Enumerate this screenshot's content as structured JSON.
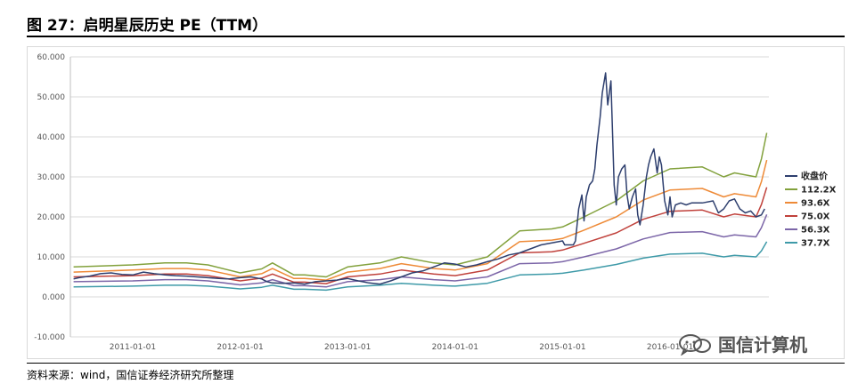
{
  "header": {
    "title": "图 27：启明星辰历史 PE（TTM）"
  },
  "footer": {
    "source": "资料来源：wind，国信证券经济研究所整理"
  },
  "watermark": {
    "text": "国信计算机",
    "icon": "wechat-icon"
  },
  "chart_data": {
    "type": "line",
    "title": "",
    "xlabel": "",
    "ylabel": "",
    "ylim": [
      -10,
      60
    ],
    "yticks": [
      -10,
      0,
      10,
      20,
      30,
      40,
      50,
      60
    ],
    "ytick_labels": [
      "-10.000",
      "0.000",
      "10.000",
      "20.000",
      "30.000",
      "40.000",
      "50.000",
      "60.000"
    ],
    "xlim": [
      2010.42,
      2016.92
    ],
    "xticks": [
      2011,
      2012,
      2013,
      2014,
      2015,
      2016
    ],
    "xtick_labels": [
      "2011-01-01",
      "2012-01-01",
      "2013-01-01",
      "2014-01-01",
      "2015-01-01",
      "2016-01-01"
    ],
    "grid": "horizontal",
    "legend": "right",
    "series": [
      {
        "name": "收盘价",
        "color": "#2e3f6e",
        "width": 1.5,
        "x": [
          2010.45,
          2010.5,
          2010.6,
          2010.7,
          2010.8,
          2010.9,
          2011.0,
          2011.1,
          2011.2,
          2011.3,
          2011.4,
          2011.5,
          2011.6,
          2011.7,
          2011.8,
          2011.9,
          2012.0,
          2012.1,
          2012.2,
          2012.25,
          2012.3,
          2012.4,
          2012.5,
          2012.6,
          2012.7,
          2012.8,
          2012.9,
          2013.0,
          2013.1,
          2013.2,
          2013.3,
          2013.4,
          2013.5,
          2013.6,
          2013.7,
          2013.8,
          2013.9,
          2014.0,
          2014.1,
          2014.2,
          2014.3,
          2014.4,
          2014.5,
          2014.6,
          2014.7,
          2014.8,
          2014.9,
          2015.0,
          2015.02,
          2015.05,
          2015.08,
          2015.1,
          2015.12,
          2015.15,
          2015.18,
          2015.2,
          2015.22,
          2015.25,
          2015.28,
          2015.3,
          2015.32,
          2015.35,
          2015.37,
          2015.4,
          2015.42,
          2015.45,
          2015.48,
          2015.5,
          2015.52,
          2015.55,
          2015.58,
          2015.6,
          2015.62,
          2015.65,
          2015.68,
          2015.7,
          2015.72,
          2015.75,
          2015.78,
          2015.8,
          2015.82,
          2015.85,
          2015.88,
          2015.9,
          2015.92,
          2015.95,
          2015.98,
          2016.0,
          2016.02,
          2016.05,
          2016.1,
          2016.15,
          2016.2,
          2016.3,
          2016.4,
          2016.45,
          2016.5,
          2016.55,
          2016.6,
          2016.65,
          2016.7,
          2016.75,
          2016.8,
          2016.85,
          2016.88
        ],
        "y": [
          4.5,
          4.8,
          5.2,
          5.8,
          6.0,
          5.6,
          5.5,
          6.2,
          5.8,
          5.5,
          5.3,
          5.2,
          5.0,
          4.8,
          4.6,
          4.5,
          4.8,
          5.0,
          4.5,
          3.8,
          3.5,
          3.4,
          3.5,
          3.2,
          3.8,
          4.0,
          4.2,
          4.6,
          4.0,
          3.5,
          3.2,
          4.0,
          5.0,
          6.0,
          6.5,
          7.5,
          8.5,
          8.2,
          7.5,
          8.0,
          8.8,
          9.5,
          10.5,
          11.0,
          12.0,
          13.0,
          13.5,
          14.0,
          13.0,
          13.0,
          13.0,
          13.0,
          14.0,
          22.0,
          25.5,
          19.0,
          25.0,
          28.0,
          29.0,
          32.0,
          38.0,
          45.0,
          51.0,
          56.0,
          48.0,
          54.0,
          28.0,
          23.0,
          30.0,
          32.0,
          33.0,
          25.5,
          22.0,
          25.0,
          27.0,
          20.5,
          18.0,
          23.0,
          30.0,
          33.0,
          35.0,
          37.0,
          31.0,
          35.0,
          33.0,
          24.0,
          20.5,
          25.0,
          20.0,
          23.0,
          23.5,
          23.0,
          23.5,
          23.5,
          24.0,
          21.0,
          22.0,
          24.0,
          24.5,
          22.0,
          21.0,
          21.5,
          20.0,
          20.5,
          22.0
        ]
      },
      {
        "name": "112.2X",
        "color": "#82a13c",
        "width": 1.5,
        "x": [
          2010.45,
          2011.0,
          2011.3,
          2011.5,
          2011.7,
          2012.0,
          2012.2,
          2012.3,
          2012.5,
          2012.6,
          2012.8,
          2013.0,
          2013.3,
          2013.5,
          2013.8,
          2014.0,
          2014.3,
          2014.6,
          2014.9,
          2015.0,
          2015.2,
          2015.5,
          2015.75,
          2016.0,
          2016.3,
          2016.5,
          2016.6,
          2016.8,
          2016.85,
          2016.9
        ],
        "y": [
          7.5,
          8.0,
          8.5,
          8.5,
          8.0,
          6.0,
          7.0,
          8.5,
          5.5,
          5.5,
          5.0,
          7.5,
          8.5,
          10.0,
          8.5,
          8.0,
          10.0,
          16.5,
          17.0,
          17.5,
          20.0,
          24.0,
          29.0,
          32.0,
          32.5,
          30.0,
          31.0,
          30.0,
          34.5,
          41.0
        ]
      },
      {
        "name": "93.6X",
        "color": "#ee8a37",
        "width": 1.5,
        "x": [
          2010.45,
          2011.0,
          2011.3,
          2011.5,
          2011.7,
          2012.0,
          2012.2,
          2012.3,
          2012.5,
          2012.6,
          2012.8,
          2013.0,
          2013.3,
          2013.5,
          2013.8,
          2014.0,
          2014.3,
          2014.6,
          2014.9,
          2015.0,
          2015.2,
          2015.5,
          2015.75,
          2016.0,
          2016.3,
          2016.5,
          2016.6,
          2016.8,
          2016.85,
          2016.9
        ],
        "y": [
          6.2,
          6.7,
          7.1,
          7.1,
          6.7,
          5.0,
          5.8,
          7.1,
          4.6,
          4.6,
          4.2,
          6.2,
          7.1,
          8.3,
          7.1,
          6.7,
          8.3,
          13.8,
          14.2,
          14.6,
          16.7,
          20.0,
          24.2,
          26.7,
          27.1,
          25.0,
          25.8,
          25.0,
          28.8,
          34.2
        ]
      },
      {
        "name": "75.0X",
        "color": "#c0413b",
        "width": 1.5,
        "x": [
          2010.45,
          2011.0,
          2011.3,
          2011.5,
          2011.7,
          2012.0,
          2012.2,
          2012.3,
          2012.5,
          2012.6,
          2012.8,
          2013.0,
          2013.3,
          2013.5,
          2013.8,
          2014.0,
          2014.3,
          2014.6,
          2014.9,
          2015.0,
          2015.2,
          2015.5,
          2015.75,
          2016.0,
          2016.3,
          2016.5,
          2016.6,
          2016.8,
          2016.85,
          2016.9
        ],
        "y": [
          5.0,
          5.3,
          5.7,
          5.7,
          5.3,
          4.0,
          4.7,
          5.7,
          3.7,
          3.7,
          3.3,
          5.0,
          5.7,
          6.7,
          5.7,
          5.3,
          6.7,
          11.0,
          11.3,
          11.7,
          13.4,
          16.0,
          19.4,
          21.4,
          21.7,
          20.0,
          20.7,
          20.0,
          23.1,
          27.4
        ]
      },
      {
        "name": "56.3X",
        "color": "#7c66a8",
        "width": 1.5,
        "x": [
          2010.45,
          2011.0,
          2011.3,
          2011.5,
          2011.7,
          2012.0,
          2012.2,
          2012.3,
          2012.5,
          2012.6,
          2012.8,
          2013.0,
          2013.3,
          2013.5,
          2013.8,
          2014.0,
          2014.3,
          2014.6,
          2014.9,
          2015.0,
          2015.2,
          2015.5,
          2015.75,
          2016.0,
          2016.3,
          2016.5,
          2016.6,
          2016.8,
          2016.85,
          2016.9
        ],
        "y": [
          3.8,
          4.0,
          4.3,
          4.3,
          4.0,
          3.0,
          3.5,
          4.3,
          2.8,
          2.8,
          2.5,
          3.8,
          4.3,
          5.0,
          4.3,
          4.0,
          5.0,
          8.3,
          8.5,
          8.8,
          10.0,
          12.0,
          14.5,
          16.1,
          16.3,
          15.0,
          15.5,
          15.0,
          17.3,
          20.6
        ]
      },
      {
        "name": "37.7X",
        "color": "#3e9aa8",
        "width": 1.5,
        "x": [
          2010.45,
          2011.0,
          2011.3,
          2011.5,
          2011.7,
          2012.0,
          2012.2,
          2012.3,
          2012.5,
          2012.6,
          2012.8,
          2013.0,
          2013.3,
          2013.5,
          2013.8,
          2014.0,
          2014.3,
          2014.6,
          2014.9,
          2015.0,
          2015.2,
          2015.5,
          2015.75,
          2016.0,
          2016.3,
          2016.5,
          2016.6,
          2016.8,
          2016.85,
          2016.9
        ],
        "y": [
          2.5,
          2.7,
          2.9,
          2.9,
          2.7,
          2.0,
          2.4,
          2.9,
          1.9,
          1.9,
          1.7,
          2.5,
          2.9,
          3.4,
          2.9,
          2.7,
          3.4,
          5.5,
          5.7,
          5.9,
          6.7,
          8.1,
          9.7,
          10.7,
          10.9,
          10.0,
          10.4,
          10.0,
          11.5,
          13.8
        ]
      }
    ]
  }
}
